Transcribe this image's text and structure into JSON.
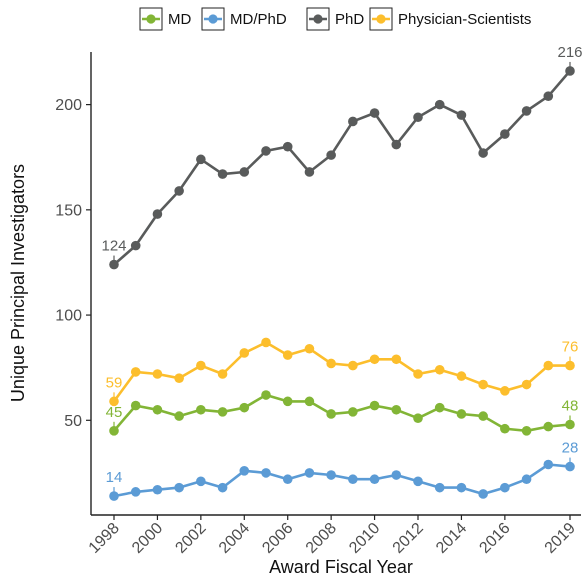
{
  "chart_data": {
    "type": "line",
    "xlabel": "Award Fiscal Year",
    "ylabel": "Unique Principal Investigators",
    "xlim": [
      1998,
      2019
    ],
    "ylim": [
      5,
      225
    ],
    "x_ticks": [
      1998,
      2000,
      2002,
      2004,
      2006,
      2008,
      2010,
      2012,
      2014,
      2016,
      2019
    ],
    "y_ticks": [
      50,
      100,
      150,
      200
    ],
    "grid": false,
    "legend_position": "top",
    "x": [
      1998,
      1999,
      2000,
      2001,
      2002,
      2003,
      2004,
      2005,
      2006,
      2007,
      2008,
      2009,
      2010,
      2011,
      2012,
      2013,
      2014,
      2015,
      2016,
      2017,
      2018,
      2019
    ],
    "series": [
      {
        "name": "MD",
        "color": "#82b536",
        "values": [
          45,
          57,
          55,
          52,
          55,
          54,
          56,
          62,
          59,
          59,
          53,
          54,
          57,
          55,
          51,
          56,
          53,
          52,
          46,
          45,
          47,
          48
        ],
        "end_labels": [
          "45",
          "48"
        ]
      },
      {
        "name": "MD/PhD",
        "color": "#5b9bd5",
        "values": [
          14,
          16,
          17,
          18,
          21,
          18,
          26,
          25,
          22,
          25,
          24,
          22,
          22,
          24,
          21,
          18,
          18,
          15,
          18,
          22,
          29,
          28
        ],
        "end_labels": [
          "14",
          "28"
        ]
      },
      {
        "name": "PhD",
        "color": "#595b5b",
        "values": [
          124,
          133,
          148,
          159,
          174,
          167,
          168,
          178,
          180,
          168,
          176,
          192,
          196,
          181,
          194,
          200,
          195,
          177,
          186,
          197,
          204,
          216
        ],
        "end_labels": [
          "124",
          "216"
        ]
      },
      {
        "name": "Physician-Scientists",
        "color": "#fcbe2c",
        "values": [
          59,
          73,
          72,
          70,
          76,
          72,
          82,
          87,
          81,
          84,
          77,
          76,
          79,
          79,
          72,
          74,
          71,
          67,
          64,
          67,
          76,
          76
        ],
        "end_labels": [
          "59",
          "76"
        ]
      }
    ]
  }
}
